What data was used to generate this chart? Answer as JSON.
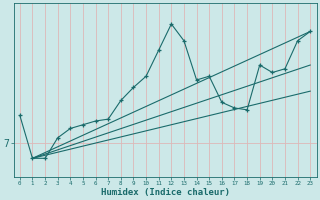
{
  "xlabel": "Humidex (Indice chaleur)",
  "bg_color": "#cce8e8",
  "line_color": "#1a6b6b",
  "vgrid_color": "#ddb8b8",
  "hgrid_color": "#ddb8b8",
  "xlim": [
    -0.5,
    23.5
  ],
  "ylim": [
    5.2,
    14.5
  ],
  "x_ticks": [
    0,
    1,
    2,
    3,
    4,
    5,
    6,
    7,
    8,
    9,
    10,
    11,
    12,
    13,
    14,
    15,
    16,
    17,
    18,
    19,
    20,
    21,
    22,
    23
  ],
  "y_tick_val": 7,
  "data_x": [
    0,
    1,
    2,
    3,
    4,
    5,
    6,
    7,
    8,
    9,
    10,
    11,
    12,
    13,
    14,
    15,
    16,
    17,
    18,
    19,
    20,
    21,
    22,
    23
  ],
  "data_y": [
    8.5,
    6.2,
    6.2,
    7.3,
    7.8,
    8.0,
    8.2,
    8.3,
    9.3,
    10.0,
    10.6,
    12.0,
    13.4,
    12.5,
    10.4,
    10.6,
    9.2,
    8.9,
    8.8,
    11.2,
    10.8,
    11.0,
    12.5,
    13.0
  ],
  "trend1_x": [
    1,
    23
  ],
  "trend1_y": [
    6.2,
    13.0
  ],
  "trend2_x": [
    1,
    23
  ],
  "trend2_y": [
    6.2,
    11.2
  ],
  "trend3_x": [
    1,
    23
  ],
  "trend3_y": [
    6.2,
    9.8
  ]
}
